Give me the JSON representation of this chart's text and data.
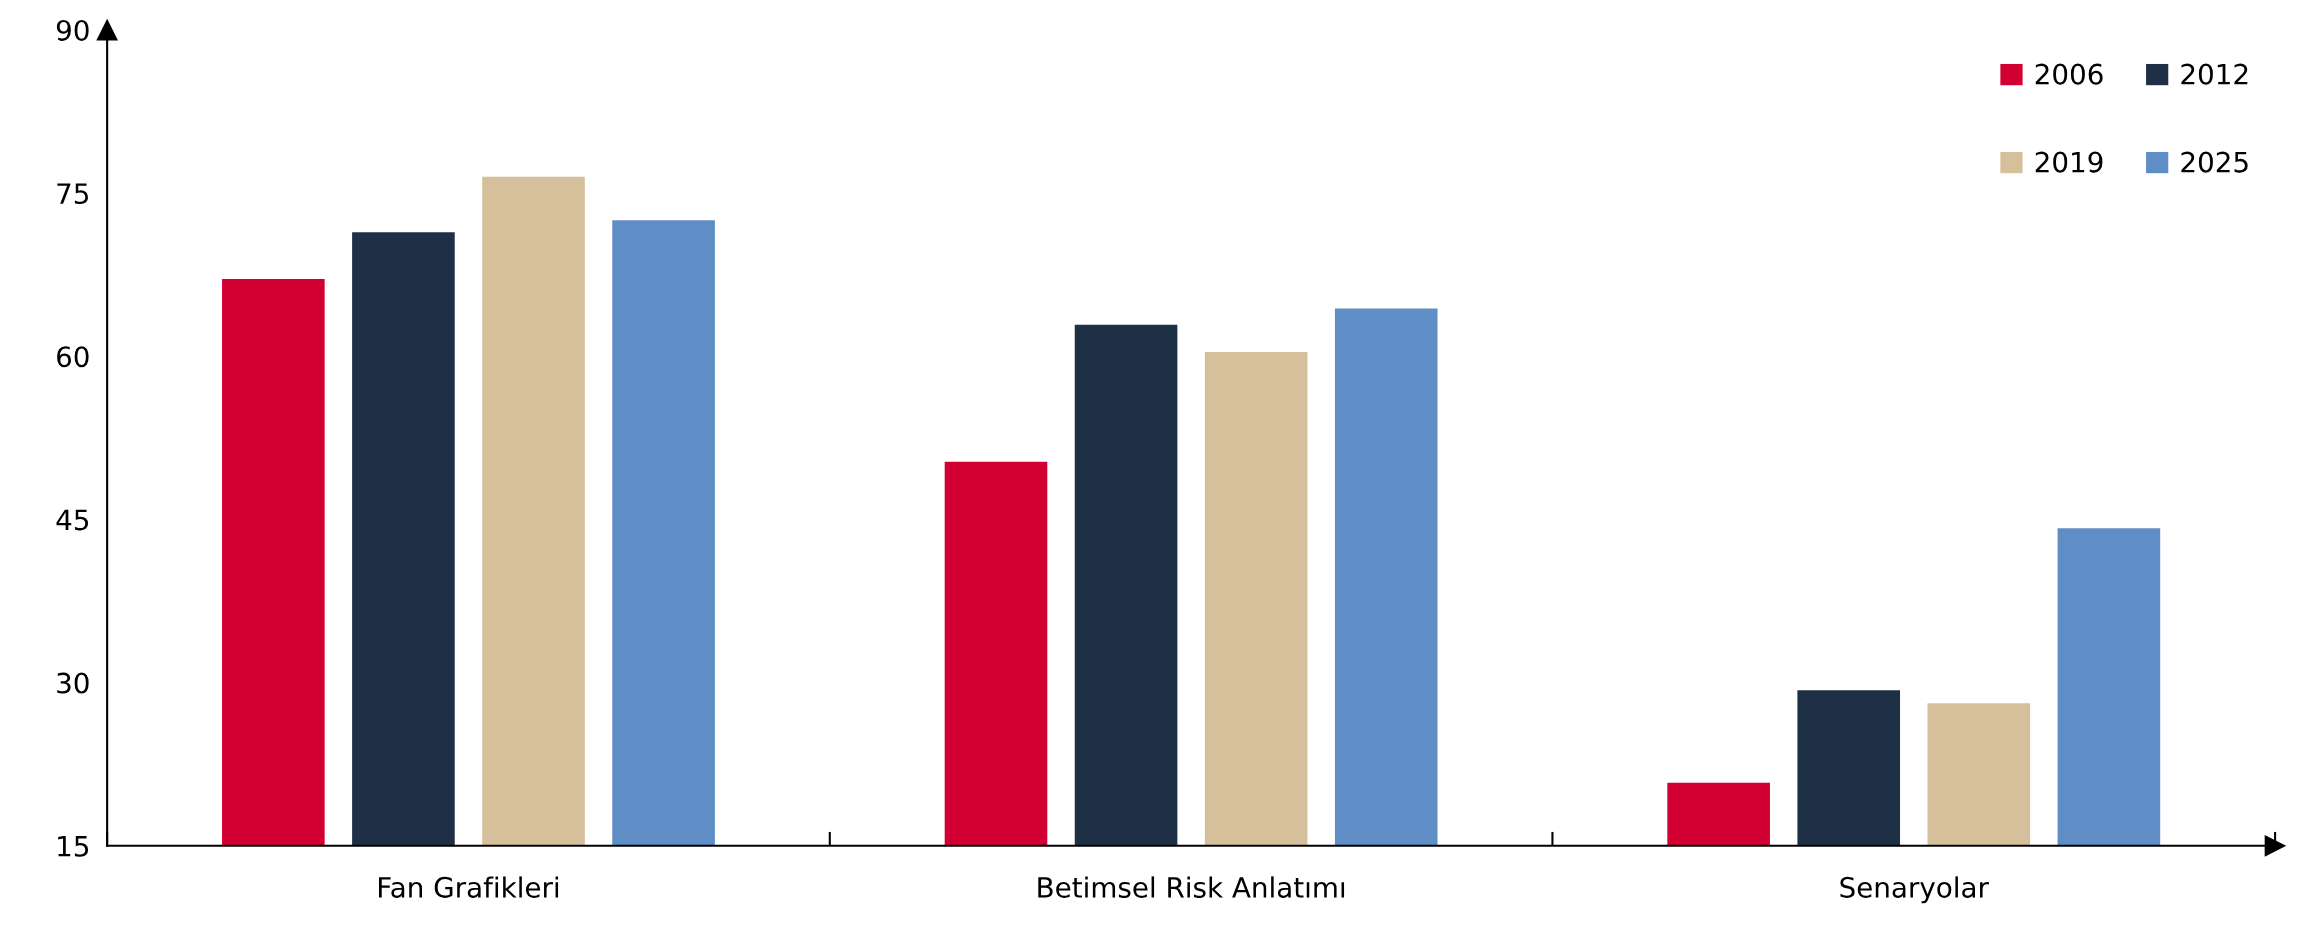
{
  "chart_data": {
    "type": "bar",
    "categories": [
      "Fan Grafikleri",
      "Betimsel Risk Anlatımı",
      "Senaryolar"
    ],
    "series": [
      {
        "name": "2006",
        "color": "#d20032",
        "values": [
          67.1,
          50.3,
          20.8
        ]
      },
      {
        "name": "2012",
        "color": "#1e3046",
        "values": [
          71.4,
          62.9,
          29.3
        ]
      },
      {
        "name": "2019",
        "color": "#d6bf9b",
        "values": [
          76.5,
          60.4,
          28.1
        ]
      },
      {
        "name": "2025",
        "color": "#5f8dc6",
        "values": [
          72.5,
          64.4,
          44.2
        ]
      }
    ],
    "ylim": [
      15,
      90
    ],
    "yticks": [
      15,
      30,
      45,
      60,
      75,
      90
    ],
    "grid": false,
    "legend": "top right"
  }
}
